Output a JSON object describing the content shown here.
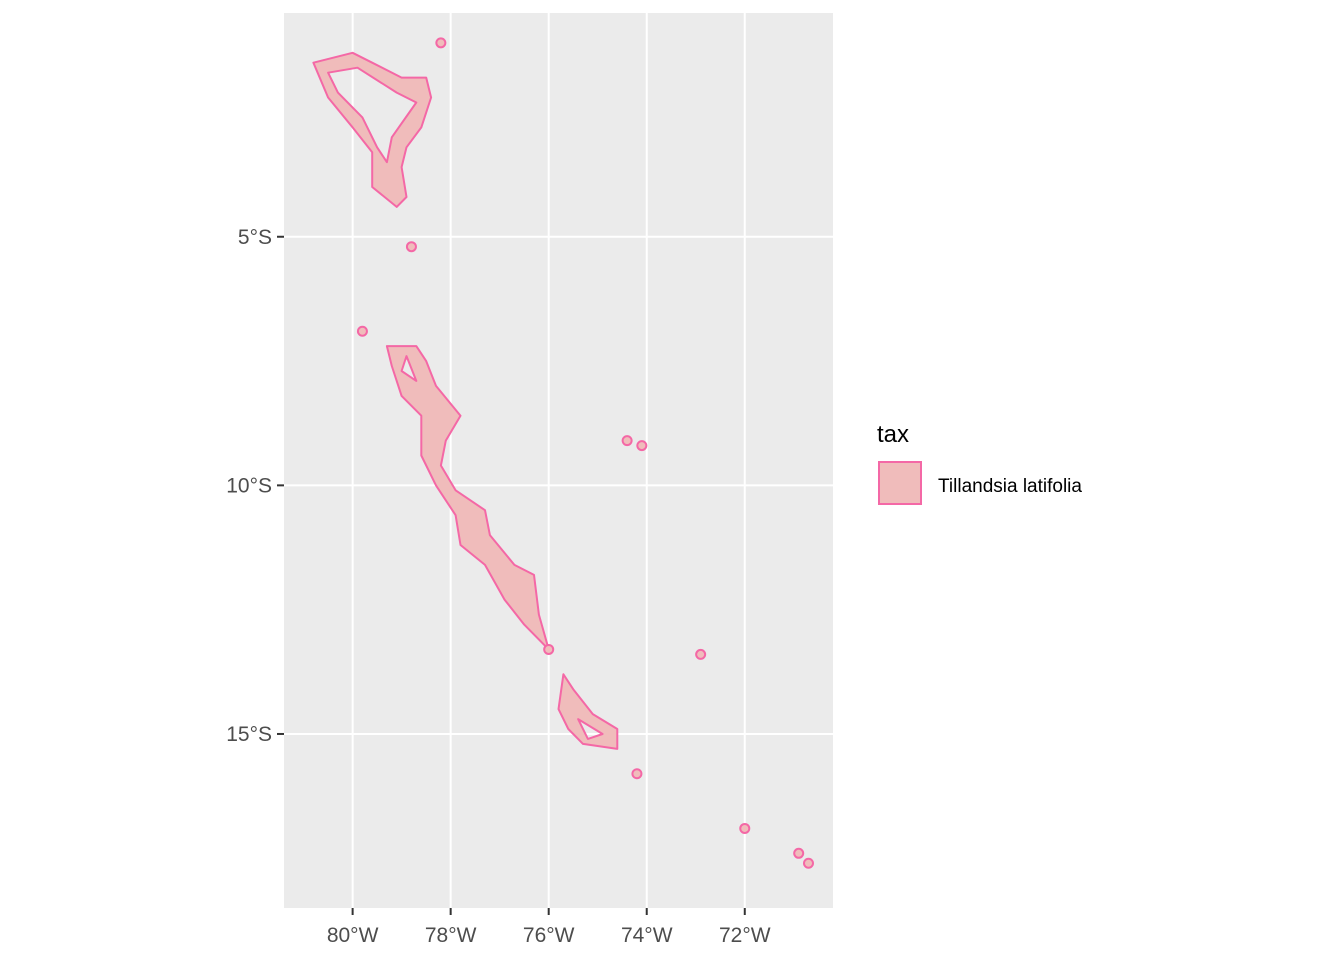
{
  "chart_data": {
    "type": "map",
    "x_ticks": [
      "80°W",
      "78°W",
      "76°W",
      "74°W",
      "72°W"
    ],
    "x_tick_values": [
      -80,
      -78,
      -76,
      -74,
      -72
    ],
    "y_ticks": [
      "5°S",
      "10°S",
      "15°S"
    ],
    "y_tick_values": [
      -5,
      -10,
      -15
    ],
    "xlim": [
      -81.4,
      -70.2
    ],
    "ylim": [
      -18.5,
      -0.5
    ],
    "grid": true,
    "legend_position": "right",
    "legend": {
      "title": "tax",
      "items": [
        {
          "label": "Tillandsia latifolia",
          "fill": "#f0bcbb",
          "stroke": "#f468a6"
        }
      ]
    },
    "colors": {
      "fill": "#f0bcbb",
      "stroke": "#f468a6",
      "panel": "#ebebeb",
      "grid": "#ffffff"
    },
    "range_polygons": [
      {
        "outer": [
          [
            -80.8,
            -1.5
          ],
          [
            -80.0,
            -1.3
          ],
          [
            -79.6,
            -1.5
          ],
          [
            -79.0,
            -1.8
          ],
          [
            -78.5,
            -1.8
          ],
          [
            -78.4,
            -2.2
          ],
          [
            -78.6,
            -2.8
          ],
          [
            -78.9,
            -3.2
          ],
          [
            -79.0,
            -3.6
          ],
          [
            -78.9,
            -4.2
          ],
          [
            -79.1,
            -4.4
          ],
          [
            -79.6,
            -4.0
          ],
          [
            -79.6,
            -3.3
          ],
          [
            -80.0,
            -2.8
          ],
          [
            -80.5,
            -2.2
          ]
        ],
        "inner": [
          [
            -80.5,
            -1.7
          ],
          [
            -79.9,
            -1.6
          ],
          [
            -79.1,
            -2.1
          ],
          [
            -78.7,
            -2.3
          ],
          [
            -79.2,
            -3.0
          ],
          [
            -79.3,
            -3.5
          ],
          [
            -79.5,
            -3.2
          ],
          [
            -79.8,
            -2.6
          ],
          [
            -80.3,
            -2.1
          ]
        ]
      },
      {
        "outer": [
          [
            -79.3,
            -7.2
          ],
          [
            -78.7,
            -7.2
          ],
          [
            -78.5,
            -7.5
          ],
          [
            -78.3,
            -8.0
          ],
          [
            -77.8,
            -8.6
          ],
          [
            -78.1,
            -9.1
          ],
          [
            -78.2,
            -9.6
          ],
          [
            -77.9,
            -10.1
          ],
          [
            -77.3,
            -10.5
          ],
          [
            -77.2,
            -11.0
          ],
          [
            -76.7,
            -11.6
          ],
          [
            -76.3,
            -11.8
          ],
          [
            -76.2,
            -12.6
          ],
          [
            -76.0,
            -13.3
          ],
          [
            -76.5,
            -12.8
          ],
          [
            -76.9,
            -12.3
          ],
          [
            -77.3,
            -11.6
          ],
          [
            -77.8,
            -11.2
          ],
          [
            -77.9,
            -10.6
          ],
          [
            -78.3,
            -10.0
          ],
          [
            -78.6,
            -9.4
          ],
          [
            -78.6,
            -8.6
          ],
          [
            -79.0,
            -8.2
          ],
          [
            -79.2,
            -7.6
          ]
        ],
        "inner": [
          [
            -78.9,
            -7.4
          ],
          [
            -78.7,
            -7.9
          ],
          [
            -79.0,
            -7.7
          ]
        ]
      },
      {
        "outer": [
          [
            -75.7,
            -13.8
          ],
          [
            -75.5,
            -14.1
          ],
          [
            -75.1,
            -14.6
          ],
          [
            -74.6,
            -14.9
          ],
          [
            -74.6,
            -15.3
          ],
          [
            -75.3,
            -15.2
          ],
          [
            -75.6,
            -14.9
          ],
          [
            -75.8,
            -14.5
          ]
        ],
        "inner": [
          [
            -75.4,
            -14.7
          ],
          [
            -74.9,
            -15.0
          ],
          [
            -75.2,
            -15.1
          ]
        ]
      }
    ],
    "occurrence_points": [
      [
        -78.2,
        -1.1
      ],
      [
        -78.8,
        -5.2
      ],
      [
        -79.8,
        -6.9
      ],
      [
        -74.4,
        -9.1
      ],
      [
        -74.1,
        -9.2
      ],
      [
        -76.0,
        -13.3
      ],
      [
        -72.9,
        -13.4
      ],
      [
        -74.2,
        -15.8
      ],
      [
        -72.0,
        -16.9
      ],
      [
        -70.9,
        -17.4
      ],
      [
        -70.7,
        -17.6
      ]
    ]
  }
}
